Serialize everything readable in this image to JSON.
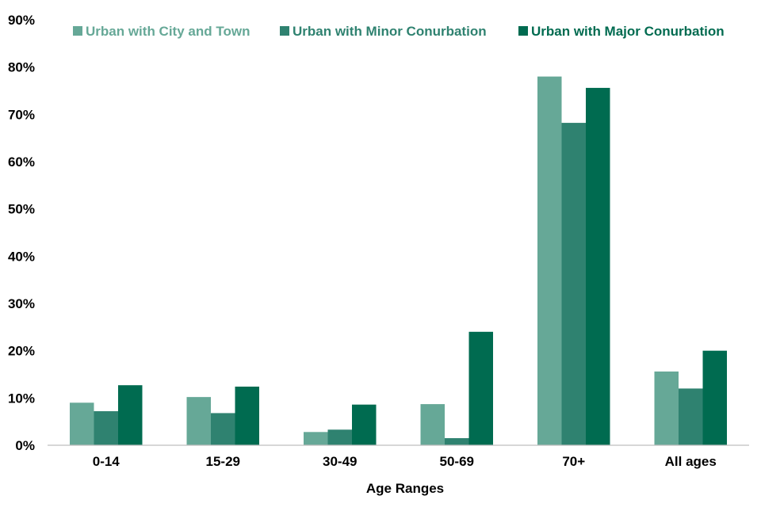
{
  "chart_data": {
    "type": "bar",
    "title": "",
    "xlabel": "Age Ranges",
    "ylabel": "",
    "categories": [
      "0-14",
      "15-29",
      "30-49",
      "50-69",
      "70+",
      "All ages"
    ],
    "series": [
      {
        "name": "Urban with City and Town",
        "color": "#66a897",
        "values": [
          9,
          10.2,
          2.8,
          8.7,
          78,
          15.6
        ]
      },
      {
        "name": "Urban with Minor Conurbation",
        "color": "#2f8270",
        "values": [
          7.2,
          6.8,
          3.3,
          1.5,
          68.2,
          12
        ]
      },
      {
        "name": "Urban with Major Conurbation",
        "color": "#006b50",
        "values": [
          12.7,
          12.4,
          8.6,
          24,
          75.6,
          20
        ]
      }
    ],
    "ylim": [
      0,
      90
    ],
    "yticks": [
      0,
      10,
      20,
      30,
      40,
      50,
      60,
      70,
      80,
      90
    ],
    "ytick_labels": [
      "0%",
      "10%",
      "20%",
      "30%",
      "40%",
      "50%",
      "60%",
      "70%",
      "80%",
      "90%"
    ],
    "grid": false,
    "legend_position": "top"
  }
}
